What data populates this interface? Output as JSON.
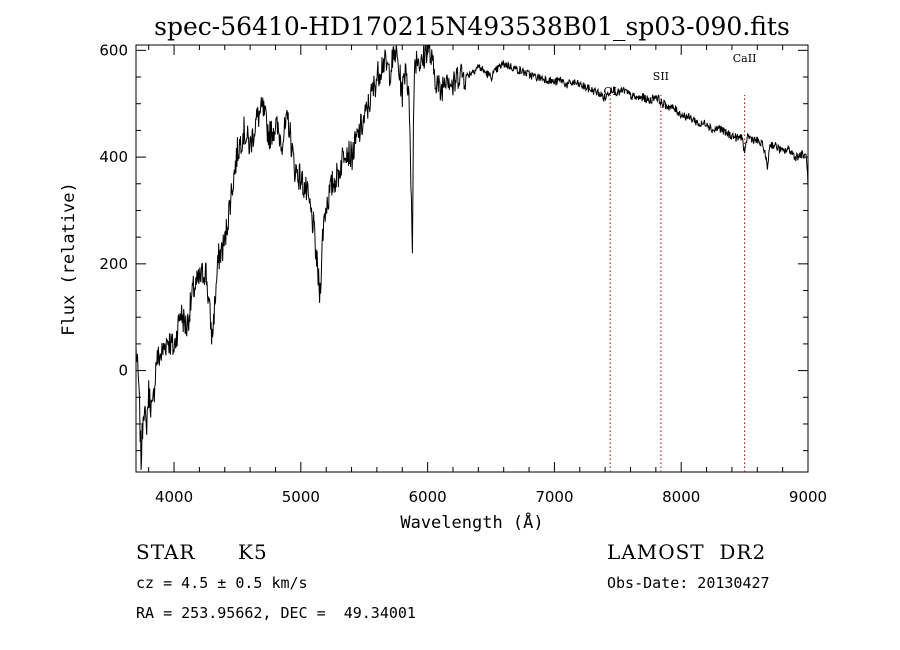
{
  "chart_data": {
    "type": "line",
    "title": "spec-56410-HD170215N493538B01_sp03-090.fits",
    "xlabel": "Wavelength (Å)",
    "ylabel": "Flux (relative)",
    "xlim": [
      3700,
      9000
    ],
    "ylim": [
      -190,
      610
    ],
    "x_ticks": [
      4000,
      5000,
      6000,
      7000,
      8000,
      9000
    ],
    "y_ticks": [
      0,
      200,
      400,
      600
    ],
    "grid": false,
    "series": [
      {
        "x": [
          3700,
          3720,
          3740,
          3760,
          3780,
          3800,
          3830,
          3860,
          3900,
          3950,
          4000,
          4050,
          4100,
          4150,
          4200,
          4250,
          4300,
          4350,
          4400,
          4450,
          4500,
          4550,
          4600,
          4650,
          4700,
          4750,
          4800,
          4850,
          4900,
          4950,
          5000,
          5050,
          5100,
          5150,
          5170,
          5180,
          5200,
          5250,
          5300,
          5350,
          5400,
          5450,
          5500,
          5550,
          5600,
          5650,
          5700,
          5750,
          5800,
          5830,
          5860,
          5880,
          5890,
          5900,
          5920,
          5950,
          6000,
          6050,
          6100,
          6150,
          6200,
          6250,
          6300,
          6350,
          6400,
          6450,
          6500,
          6550,
          6600,
          6650,
          6700,
          6750,
          6800,
          6850,
          6900,
          6950,
          7000,
          7050,
          7100,
          7150,
          7200,
          7250,
          7300,
          7350,
          7400,
          7450,
          7500,
          7550,
          7600,
          7650,
          7700,
          7750,
          7800,
          7850,
          7900,
          7950,
          8000,
          8050,
          8100,
          8150,
          8200,
          8250,
          8300,
          8350,
          8400,
          8450,
          8480,
          8500,
          8520,
          8550,
          8600,
          8650,
          8680,
          8700,
          8750,
          8800,
          8850,
          8900,
          8950,
          8990,
          9000
        ],
        "y": [
          40,
          -20,
          -170,
          -60,
          -110,
          -40,
          -80,
          20,
          30,
          60,
          40,
          110,
          80,
          150,
          170,
          190,
          60,
          210,
          240,
          330,
          410,
          450,
          420,
          470,
          490,
          440,
          460,
          430,
          470,
          380,
          360,
          330,
          270,
          140,
          240,
          280,
          310,
          350,
          370,
          420,
          400,
          440,
          470,
          510,
          550,
          580,
          560,
          600,
          520,
          580,
          470,
          210,
          520,
          580,
          590,
          570,
          610,
          560,
          520,
          560,
          530,
          560,
          550,
          560,
          570,
          560,
          550,
          565,
          575,
          570,
          565,
          560,
          555,
          550,
          548,
          545,
          540,
          545,
          535,
          540,
          535,
          530,
          525,
          520,
          510,
          530,
          520,
          525,
          515,
          510,
          512,
          505,
          515,
          500,
          495,
          490,
          480,
          475,
          470,
          460,
          465,
          450,
          455,
          445,
          440,
          435,
          440,
          400,
          440,
          435,
          430,
          420,
          380,
          425,
          420,
          410,
          415,
          400,
          405,
          400,
          340
        ]
      }
    ],
    "annotations": [
      {
        "label": "OI",
        "wavelength": 7440
      },
      {
        "label": "SII",
        "wavelength": 7840
      },
      {
        "label": "CaII",
        "wavelength": 8500
      }
    ]
  },
  "info": {
    "object_class": "STAR",
    "subclass": "K5",
    "survey": "LAMOST  DR2",
    "cz": "cz = 4.5 ± 0.5 km/s",
    "obs_date": "Obs-Date: 20130427",
    "coords": "RA = 253.95662, DEC =  49.34001"
  }
}
